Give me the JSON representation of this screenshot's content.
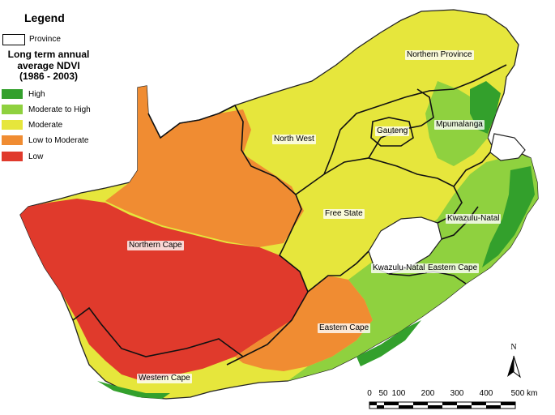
{
  "legend": {
    "title": "Legend",
    "province_label": "Province",
    "ndvi_title_lines": [
      "Long term annual",
      "average NDVI",
      "(1986 - 2003)"
    ],
    "items": [
      {
        "label": "High",
        "color": "#33a02c"
      },
      {
        "label": "Moderate to High",
        "color": "#8fd13f"
      },
      {
        "label": "Moderate",
        "color": "#e6e63c"
      },
      {
        "label": "Low to Moderate",
        "color": "#f08c32"
      },
      {
        "label": "Low",
        "color": "#e03a2c"
      }
    ]
  },
  "places": {
    "northern_province": "Northern Province",
    "mpumalanga": "Mpumalanga",
    "gauteng": "Gauteng",
    "north_west": "North West",
    "free_state": "Free State",
    "kwazulu_natal": "Kwazulu-Natal",
    "kwazulu_natal_2": "Kwazulu-Natal",
    "eastern_cape_1": "Eastern Cape",
    "eastern_cape_2": "Eastern Cape",
    "northern_cape": "Northern Cape",
    "western_cape": "Western Cape"
  },
  "north_arrow": "N",
  "scale": {
    "labels": [
      "0",
      "50",
      "100",
      "200",
      "300",
      "400",
      "500 km"
    ]
  }
}
